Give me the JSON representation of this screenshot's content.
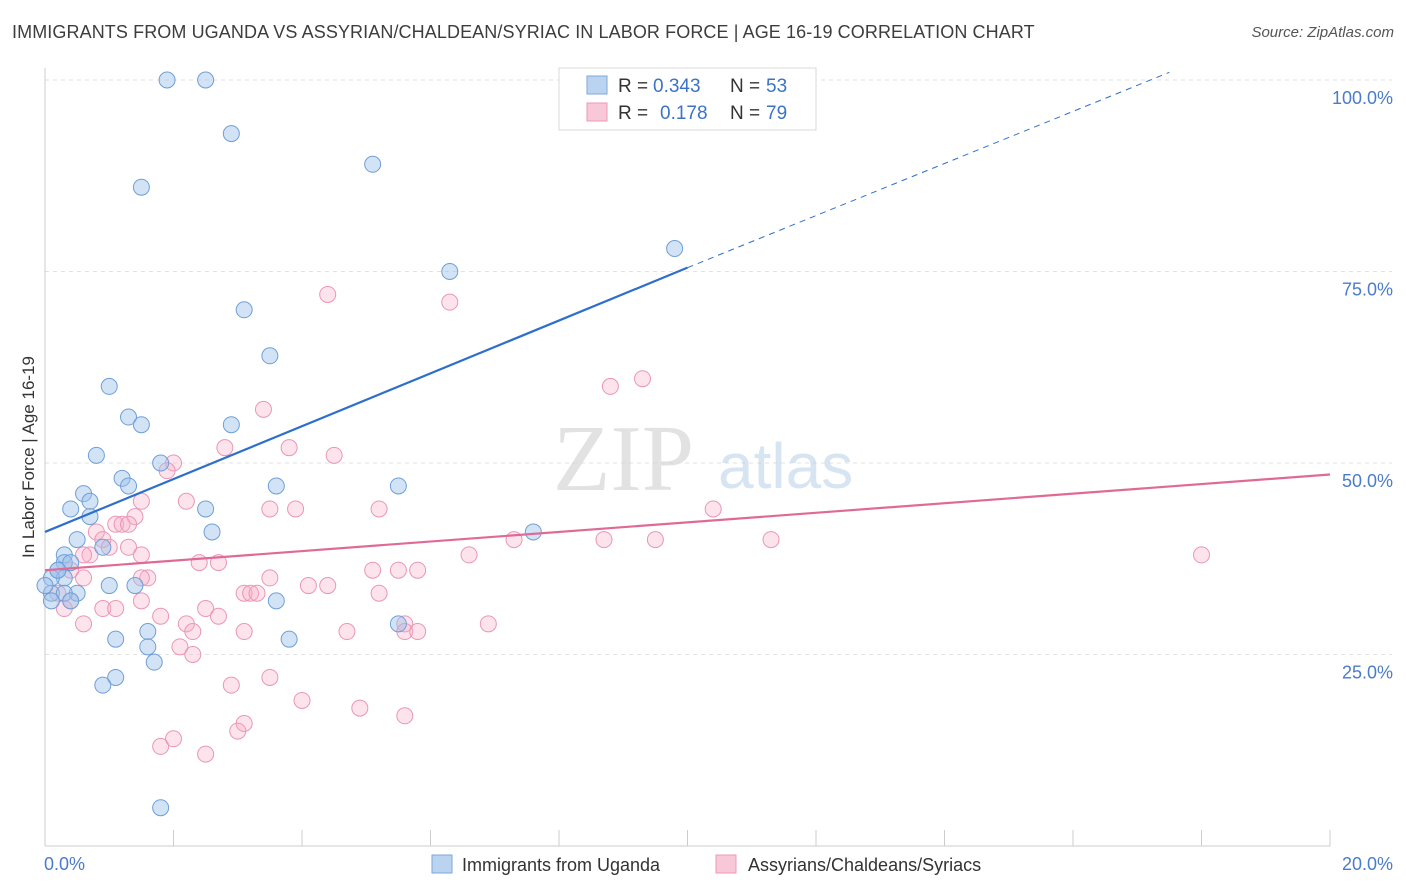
{
  "title": "IMMIGRANTS FROM UGANDA VS ASSYRIAN/CHALDEAN/SYRIAC IN LABOR FORCE | AGE 16-19 CORRELATION CHART",
  "source": "Source: ZipAtlas.com",
  "watermark": {
    "zip": "ZIP",
    "atlas": "atlas"
  },
  "colors": {
    "blue": "#6fa8dc",
    "blue_line": "#2e6fcc",
    "pink": "#f2a1bd",
    "pink_line": "#e06a96",
    "axis_text": "#4a7cc9"
  },
  "chart_data": {
    "type": "scatter",
    "title": "IMMIGRANTS FROM UGANDA VS ASSYRIAN/CHALDEAN/SYRIAC IN LABOR FORCE | AGE 16-19 CORRELATION CHART",
    "xlabel": "",
    "ylabel": "In Labor Force | Age 16-19",
    "xlim": [
      0,
      20
    ],
    "ylim": [
      0,
      100
    ],
    "x_tick_labels": {
      "left": "0.0%",
      "right": "20.0%"
    },
    "y_ticks": [
      {
        "value": 100,
        "label": "100.0%"
      },
      {
        "value": 75,
        "label": "75.0%"
      },
      {
        "value": 50,
        "label": "50.0%"
      },
      {
        "value": 25,
        "label": "25.0%"
      }
    ],
    "legend_stats": [
      {
        "r_label": "R =",
        "r_value": "0.343",
        "n_label": "N =",
        "n_value": "53"
      },
      {
        "r_label": "R =",
        "r_value": "0.178",
        "n_label": "N =",
        "n_value": "79"
      }
    ],
    "series": [
      {
        "name": "Immigrants from Uganda",
        "color": "#6fa8dc",
        "trend": {
          "x0": 0,
          "y0": 41,
          "x1": 10,
          "y1": 75.5,
          "dash_to_x": 17.5,
          "dash_to_y": 101
        },
        "points": [
          [
            1.9,
            100
          ],
          [
            2.5,
            100
          ],
          [
            2.9,
            93
          ],
          [
            5.1,
            89
          ],
          [
            1.5,
            86
          ],
          [
            9.8,
            78
          ],
          [
            6.3,
            75
          ],
          [
            3.1,
            70
          ],
          [
            3.5,
            64
          ],
          [
            1.0,
            60
          ],
          [
            1.3,
            56
          ],
          [
            1.5,
            55
          ],
          [
            2.9,
            55
          ],
          [
            0.8,
            51
          ],
          [
            1.8,
            50
          ],
          [
            1.2,
            48
          ],
          [
            1.3,
            47
          ],
          [
            3.6,
            47
          ],
          [
            5.5,
            47
          ],
          [
            0.6,
            46
          ],
          [
            0.7,
            45
          ],
          [
            0.4,
            44
          ],
          [
            2.5,
            44
          ],
          [
            0.7,
            43
          ],
          [
            7.6,
            41
          ],
          [
            2.6,
            41
          ],
          [
            0.5,
            40
          ],
          [
            0.9,
            39
          ],
          [
            0.3,
            38
          ],
          [
            0.3,
            37
          ],
          [
            0.4,
            37
          ],
          [
            0.2,
            36
          ],
          [
            0.3,
            35
          ],
          [
            0.1,
            35
          ],
          [
            1.0,
            34
          ],
          [
            1.4,
            34
          ],
          [
            0.5,
            33
          ],
          [
            0.1,
            33
          ],
          [
            0.3,
            33
          ],
          [
            0.4,
            32
          ],
          [
            0.1,
            32
          ],
          [
            3.6,
            32
          ],
          [
            5.5,
            29
          ],
          [
            1.6,
            28
          ],
          [
            3.8,
            27
          ],
          [
            1.1,
            27
          ],
          [
            1.6,
            26
          ],
          [
            1.7,
            24
          ],
          [
            1.1,
            22
          ],
          [
            0.9,
            21
          ],
          [
            1.8,
            5
          ],
          [
            0.0,
            34
          ],
          [
            0.2,
            36
          ]
        ]
      },
      {
        "name": "Assyrians/Chaldeans/Syriacs",
        "color": "#f2a1bd",
        "trend": {
          "x0": 0,
          "y0": 36,
          "x1": 20,
          "y1": 48.5
        },
        "points": [
          [
            4.4,
            72
          ],
          [
            6.3,
            71
          ],
          [
            9.3,
            61
          ],
          [
            8.8,
            60
          ],
          [
            3.4,
            57
          ],
          [
            3.8,
            52
          ],
          [
            4.5,
            51
          ],
          [
            2.0,
            50
          ],
          [
            2.8,
            52
          ],
          [
            1.9,
            49
          ],
          [
            2.2,
            45
          ],
          [
            1.5,
            45
          ],
          [
            5.2,
            44
          ],
          [
            3.5,
            44
          ],
          [
            3.9,
            44
          ],
          [
            10.4,
            44
          ],
          [
            1.4,
            43
          ],
          [
            1.1,
            42
          ],
          [
            1.2,
            42
          ],
          [
            1.3,
            42
          ],
          [
            0.8,
            41
          ],
          [
            9.5,
            40
          ],
          [
            11.3,
            40
          ],
          [
            0.9,
            40
          ],
          [
            1.0,
            39
          ],
          [
            1.3,
            39
          ],
          [
            0.7,
            38
          ],
          [
            0.6,
            38
          ],
          [
            1.5,
            38
          ],
          [
            2.4,
            37
          ],
          [
            2.7,
            37
          ],
          [
            6.6,
            38
          ],
          [
            18.0,
            38
          ],
          [
            0.4,
            36
          ],
          [
            5.1,
            36
          ],
          [
            5.5,
            36
          ],
          [
            5.8,
            36
          ],
          [
            0.6,
            35
          ],
          [
            1.6,
            35
          ],
          [
            1.5,
            35
          ],
          [
            3.5,
            35
          ],
          [
            4.1,
            34
          ],
          [
            4.4,
            34
          ],
          [
            5.2,
            33
          ],
          [
            3.1,
            33
          ],
          [
            3.2,
            33
          ],
          [
            3.3,
            33
          ],
          [
            1.5,
            32
          ],
          [
            0.9,
            31
          ],
          [
            2.5,
            31
          ],
          [
            1.8,
            30
          ],
          [
            2.7,
            30
          ],
          [
            5.6,
            29
          ],
          [
            6.9,
            29
          ],
          [
            2.2,
            29
          ],
          [
            3.1,
            28
          ],
          [
            2.3,
            28
          ],
          [
            4.7,
            28
          ],
          [
            5.6,
            28
          ],
          [
            5.8,
            28
          ],
          [
            2.1,
            26
          ],
          [
            2.3,
            25
          ],
          [
            3.5,
            22
          ],
          [
            2.9,
            21
          ],
          [
            4.0,
            19
          ],
          [
            4.9,
            18
          ],
          [
            5.6,
            17
          ],
          [
            3.1,
            16
          ],
          [
            3.0,
            15
          ],
          [
            2.0,
            14
          ],
          [
            1.8,
            13
          ],
          [
            2.5,
            12
          ],
          [
            0.2,
            33
          ],
          [
            0.3,
            31
          ],
          [
            0.4,
            32
          ],
          [
            1.1,
            31
          ],
          [
            0.6,
            29
          ],
          [
            8.7,
            40
          ],
          [
            7.3,
            40
          ]
        ]
      }
    ]
  },
  "legend": [
    {
      "label": "Immigrants from Uganda"
    },
    {
      "label": "Assyrians/Chaldeans/Syriacs"
    }
  ]
}
